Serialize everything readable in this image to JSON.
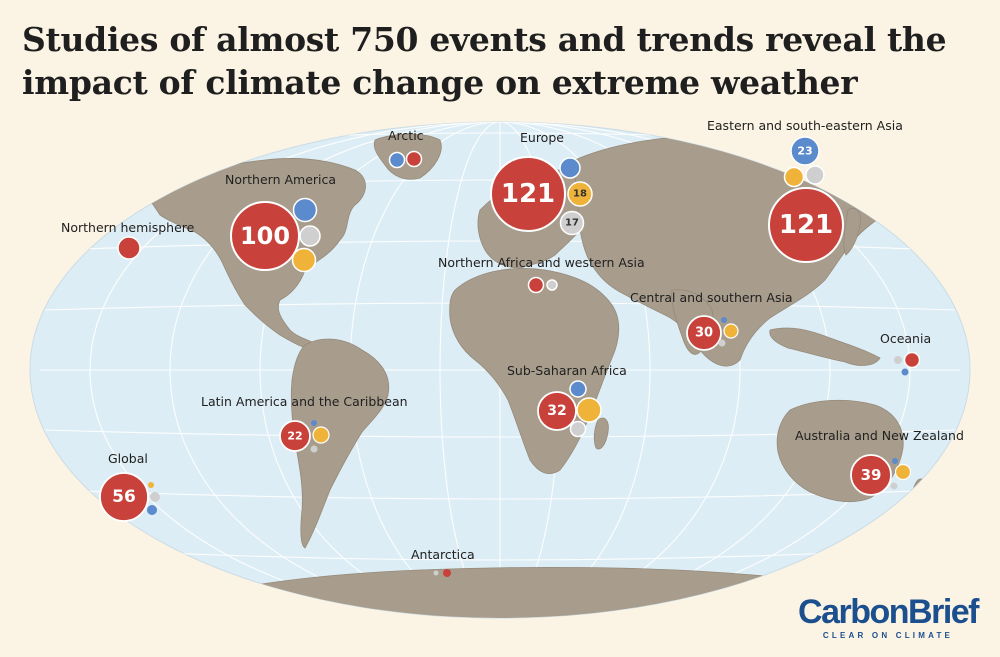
{
  "title": "Studies of almost 750 events and trends reveal the impact of climate change on extreme weather",
  "colors": {
    "red": "#c8413a",
    "blue": "#5b8bcc",
    "orange": "#efb33a",
    "grey": "#cfcfcf",
    "ocean": "#ddedf5",
    "land": "#a89d8d",
    "background": "#fbf3e4",
    "brand": "#1b4f8e"
  },
  "regions": [
    {
      "name": "Arctic",
      "count": null
    },
    {
      "name": "Europe",
      "count": 121,
      "orange_count": 18,
      "grey_count": 17
    },
    {
      "name": "Eastern and south-eastern Asia",
      "count": 121,
      "blue_count": 23
    },
    {
      "name": "Northern America",
      "count": 100
    },
    {
      "name": "Northern hemisphere",
      "count": null
    },
    {
      "name": "Northern Africa and western Asia",
      "count": null
    },
    {
      "name": "Central and southern Asia",
      "count": 30
    },
    {
      "name": "Oceania",
      "count": null
    },
    {
      "name": "Sub-Saharan Africa",
      "count": 32
    },
    {
      "name": "Latin America and the Caribbean",
      "count": 22
    },
    {
      "name": "Australia and New Zealand",
      "count": 39
    },
    {
      "name": "Global",
      "count": 56
    },
    {
      "name": "Antarctica",
      "count": null
    }
  ],
  "brand": {
    "name": "CarbonBrief",
    "tagline": "CLEAR ON CLIMATE"
  }
}
